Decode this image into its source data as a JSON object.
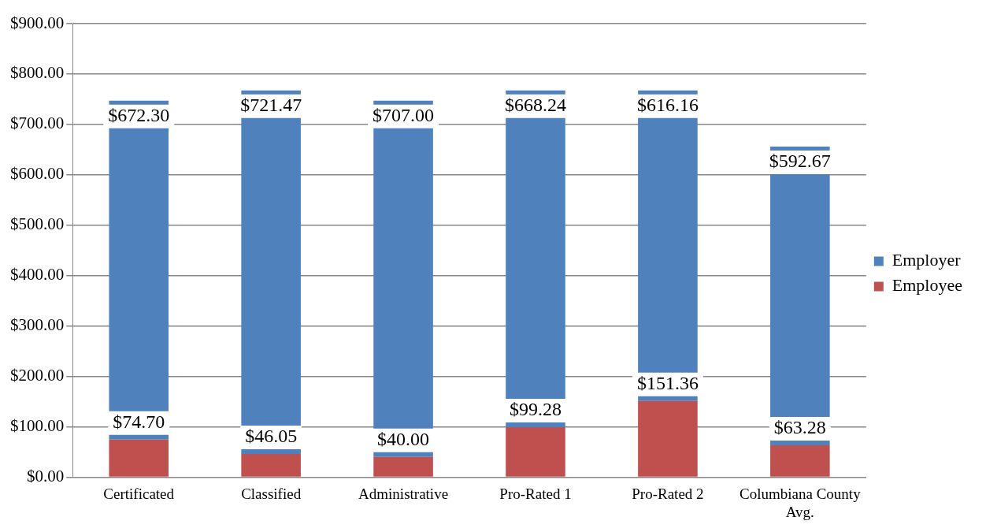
{
  "chart_data": {
    "type": "bar",
    "stacked": true,
    "categories": [
      "Certificated",
      "Classified",
      "Administrative",
      "Pro-Rated 1",
      "Pro-Rated 2",
      "Columbiana County Avg."
    ],
    "series": [
      {
        "name": "Employee",
        "color": "#c0504d",
        "values": [
          74.7,
          46.05,
          40.0,
          99.28,
          151.36,
          63.28
        ]
      },
      {
        "name": "Employer",
        "color": "#4f81bd",
        "values": [
          672.3,
          721.47,
          707.0,
          668.24,
          616.16,
          592.67
        ]
      }
    ],
    "ylim": [
      0,
      900
    ],
    "yticks": [
      {
        "value": 0,
        "label": "$0.00"
      },
      {
        "value": 100,
        "label": "$100.00"
      },
      {
        "value": 200,
        "label": "$200.00"
      },
      {
        "value": 300,
        "label": "$300.00"
      },
      {
        "value": 400,
        "label": "$400.00"
      },
      {
        "value": 500,
        "label": "$500.00"
      },
      {
        "value": 600,
        "label": "$600.00"
      },
      {
        "value": 700,
        "label": "$700.00"
      },
      {
        "value": 800,
        "label": "$800.00"
      },
      {
        "value": 900,
        "label": "$900.00"
      }
    ],
    "grid": "y",
    "legend": "right",
    "value_labels": [
      [
        "$74.70",
        "$46.05",
        "$40.00",
        "$99.28",
        "$151.36",
        "$63.28"
      ],
      [
        "$672.30",
        "$721.47",
        "$707.00",
        "$668.24",
        "$616.16",
        "$592.67"
      ]
    ]
  }
}
